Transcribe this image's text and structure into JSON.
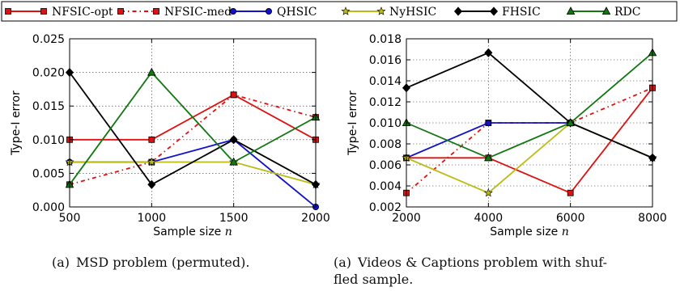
{
  "legend": [
    {
      "name": "NFSIC-opt",
      "color": "#dd1111",
      "dash": "",
      "marker": "square"
    },
    {
      "name": "NFSIC-med",
      "color": "#dd1111",
      "dash": "5,4,1.5,4",
      "marker": "square"
    },
    {
      "name": "QHSIC",
      "color": "#1111cc",
      "dash": "",
      "marker": "circle"
    },
    {
      "name": "NyHSIC",
      "color": "#bbbb11",
      "dash": "",
      "marker": "star"
    },
    {
      "name": "FHSIC",
      "color": "#000000",
      "dash": "",
      "marker": "diamond"
    },
    {
      "name": "RDC",
      "color": "#117711",
      "dash": "",
      "marker": "triangle"
    }
  ],
  "captions": [
    {
      "tag": "(a)",
      "text": "MSD problem (permuted)."
    },
    {
      "tag": "(a)",
      "text": "Videos & Captions problem with shuf-",
      "text2": "fled sample."
    }
  ],
  "chart_data": [
    {
      "type": "line",
      "xlabel": "Sample size",
      "xlabel_var": "n",
      "ylabel": "Type-I error",
      "x": [
        500,
        1000,
        1500,
        2000
      ],
      "xlim": [
        500,
        2000
      ],
      "ylim": [
        0,
        0.025
      ],
      "xticks": [
        "500",
        "1000",
        "1500",
        "2000"
      ],
      "yticks": [
        "0.000",
        "0.005",
        "0.010",
        "0.015",
        "0.020",
        "0.025"
      ],
      "grid": true,
      "series": [
        {
          "name": "NFSIC-opt",
          "values": [
            0.01,
            0.01,
            0.01667,
            0.01
          ]
        },
        {
          "name": "NFSIC-med",
          "values": [
            0.00333,
            0.00667,
            0.01667,
            0.01333
          ]
        },
        {
          "name": "QHSIC",
          "values": [
            0.00667,
            0.00667,
            0.01,
            0.0
          ]
        },
        {
          "name": "NyHSIC",
          "values": [
            0.00667,
            0.00667,
            0.00667,
            0.00333
          ]
        },
        {
          "name": "FHSIC",
          "values": [
            0.02,
            0.00333,
            0.01,
            0.00333
          ]
        },
        {
          "name": "RDC",
          "values": [
            0.00333,
            0.02,
            0.00667,
            0.01333
          ]
        }
      ]
    },
    {
      "type": "line",
      "xlabel": "Sample size",
      "xlabel_var": "n",
      "ylabel": "Type-I error",
      "x": [
        2000,
        4000,
        6000,
        8000
      ],
      "xlim": [
        2000,
        8000
      ],
      "ylim": [
        0.002,
        0.018
      ],
      "xticks": [
        "2000",
        "4000",
        "6000",
        "8000"
      ],
      "yticks": [
        "0.002",
        "0.004",
        "0.006",
        "0.008",
        "0.010",
        "0.012",
        "0.014",
        "0.016",
        "0.018"
      ],
      "grid": true,
      "series": [
        {
          "name": "NFSIC-opt",
          "values": [
            0.00667,
            0.00667,
            0.00333,
            0.01333
          ]
        },
        {
          "name": "NFSIC-med",
          "values": [
            0.00333,
            0.01,
            0.01,
            0.01333
          ]
        },
        {
          "name": "QHSIC",
          "values": [
            0.00667,
            0.01,
            0.01,
            0.00667
          ]
        },
        {
          "name": "NyHSIC",
          "values": [
            0.00667,
            0.00333,
            0.01,
            0.00667
          ]
        },
        {
          "name": "FHSIC",
          "values": [
            0.01333,
            0.01667,
            0.01,
            0.00667
          ]
        },
        {
          "name": "RDC",
          "values": [
            0.01,
            0.00667,
            0.01,
            0.01667
          ]
        }
      ]
    }
  ]
}
